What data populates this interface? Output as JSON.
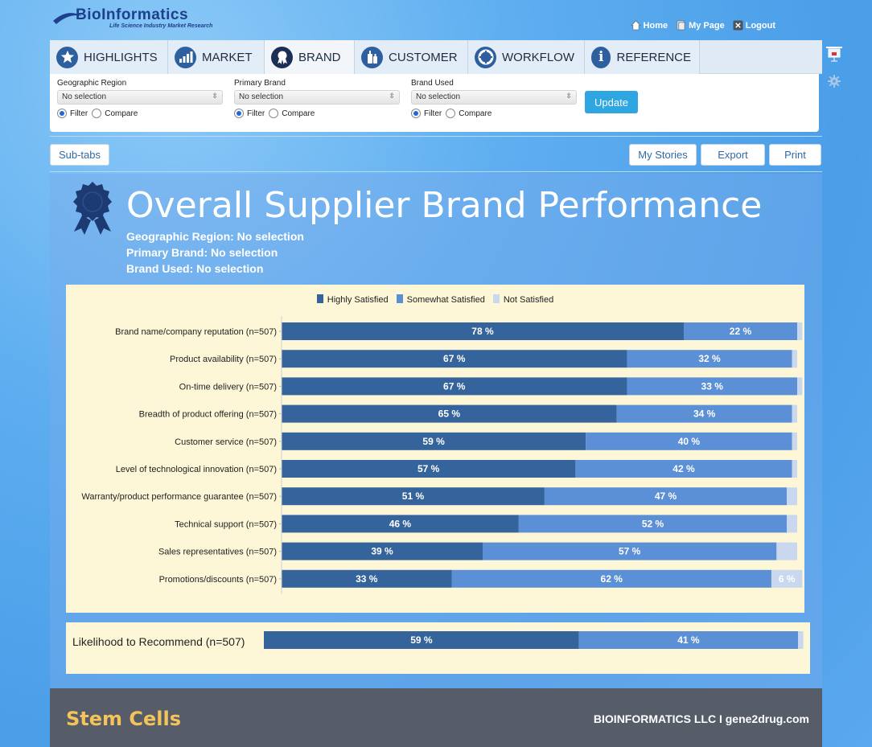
{
  "logo": {
    "name": "BioInformatics",
    "tagline": "Life Science Industry Market Research"
  },
  "toplinks": [
    {
      "label": "Home",
      "icon": "home-icon"
    },
    {
      "label": "My Page",
      "icon": "page-icon"
    },
    {
      "label": "Logout",
      "icon": "close-icon"
    }
  ],
  "tabs": [
    {
      "label": "HIGHLIGHTS",
      "icon": "star-icon",
      "active": false
    },
    {
      "label": "MARKET",
      "icon": "bar-chart-icon",
      "active": false
    },
    {
      "label": "BRAND",
      "icon": "ribbon-icon",
      "active": true
    },
    {
      "label": "CUSTOMER",
      "icon": "bottles-icon",
      "active": false
    },
    {
      "label": "WORKFLOW",
      "icon": "lifebuoy-icon",
      "active": false
    },
    {
      "label": "REFERENCE",
      "icon": "info-icon",
      "active": false
    }
  ],
  "filters": [
    {
      "label": "Geographic Region",
      "value": "No selection",
      "filter": "Filter",
      "compare": "Compare"
    },
    {
      "label": "Primary Brand",
      "value": "No selection",
      "filter": "Filter",
      "compare": "Compare"
    },
    {
      "label": "Brand Used",
      "value": "No selection",
      "filter": "Filter",
      "compare": "Compare"
    }
  ],
  "update_label": "Update",
  "subtabs_label": "Sub-tabs",
  "mystories_label": "My Stories",
  "export_label": "Export",
  "print_label": "Print",
  "page_title": "Overall Supplier Brand Performance",
  "selections": [
    "Geographic Region: No selection",
    "Primary Brand: No selection",
    "Brand Used: No selection"
  ],
  "colors": {
    "highly": "#35649c",
    "somewhat": "#5b8fd6",
    "not": "#c9d8ef"
  },
  "chart_data": [
    {
      "type": "bar",
      "orientation": "horizontal-stacked",
      "legend": [
        "Highly Satisfied",
        "Somewhat Satisfied",
        "Not Satisfied"
      ],
      "legend_position": "top-center",
      "categories": [
        "Brand name/company reputation (n=507)",
        "Product availability (n=507)",
        "On-time delivery (n=507)",
        "Breadth of product offering (n=507)",
        "Customer service (n=507)",
        "Level of technological innovation (n=507)",
        "Warranty/product performance guarantee (n=507)",
        "Technical support (n=507)",
        "Sales representatives (n=507)",
        "Promotions/discounts (n=507)"
      ],
      "series": [
        {
          "name": "Highly Satisfied",
          "values": [
            78,
            67,
            67,
            65,
            59,
            57,
            51,
            46,
            39,
            33
          ]
        },
        {
          "name": "Somewhat Satisfied",
          "values": [
            22,
            32,
            33,
            34,
            40,
            42,
            47,
            52,
            57,
            62
          ]
        },
        {
          "name": "Not Satisfied",
          "values": [
            1,
            1,
            1,
            1,
            1,
            1,
            2,
            2,
            4,
            6
          ]
        }
      ],
      "value_format": "{v} %",
      "xlim": [
        0,
        100
      ]
    },
    {
      "type": "bar",
      "orientation": "horizontal-stacked",
      "categories": [
        "Likelihood to Recommend (n=507)"
      ],
      "series": [
        {
          "name": "Highly Satisfied",
          "values": [
            59
          ]
        },
        {
          "name": "Somewhat Satisfied",
          "values": [
            41
          ]
        },
        {
          "name": "Not Satisfied",
          "values": [
            1
          ]
        }
      ],
      "xlim": [
        0,
        100
      ]
    }
  ],
  "footer": {
    "left": "Stem Cells",
    "right": "BIOINFORMATICS LLC I gene2drug.com"
  }
}
